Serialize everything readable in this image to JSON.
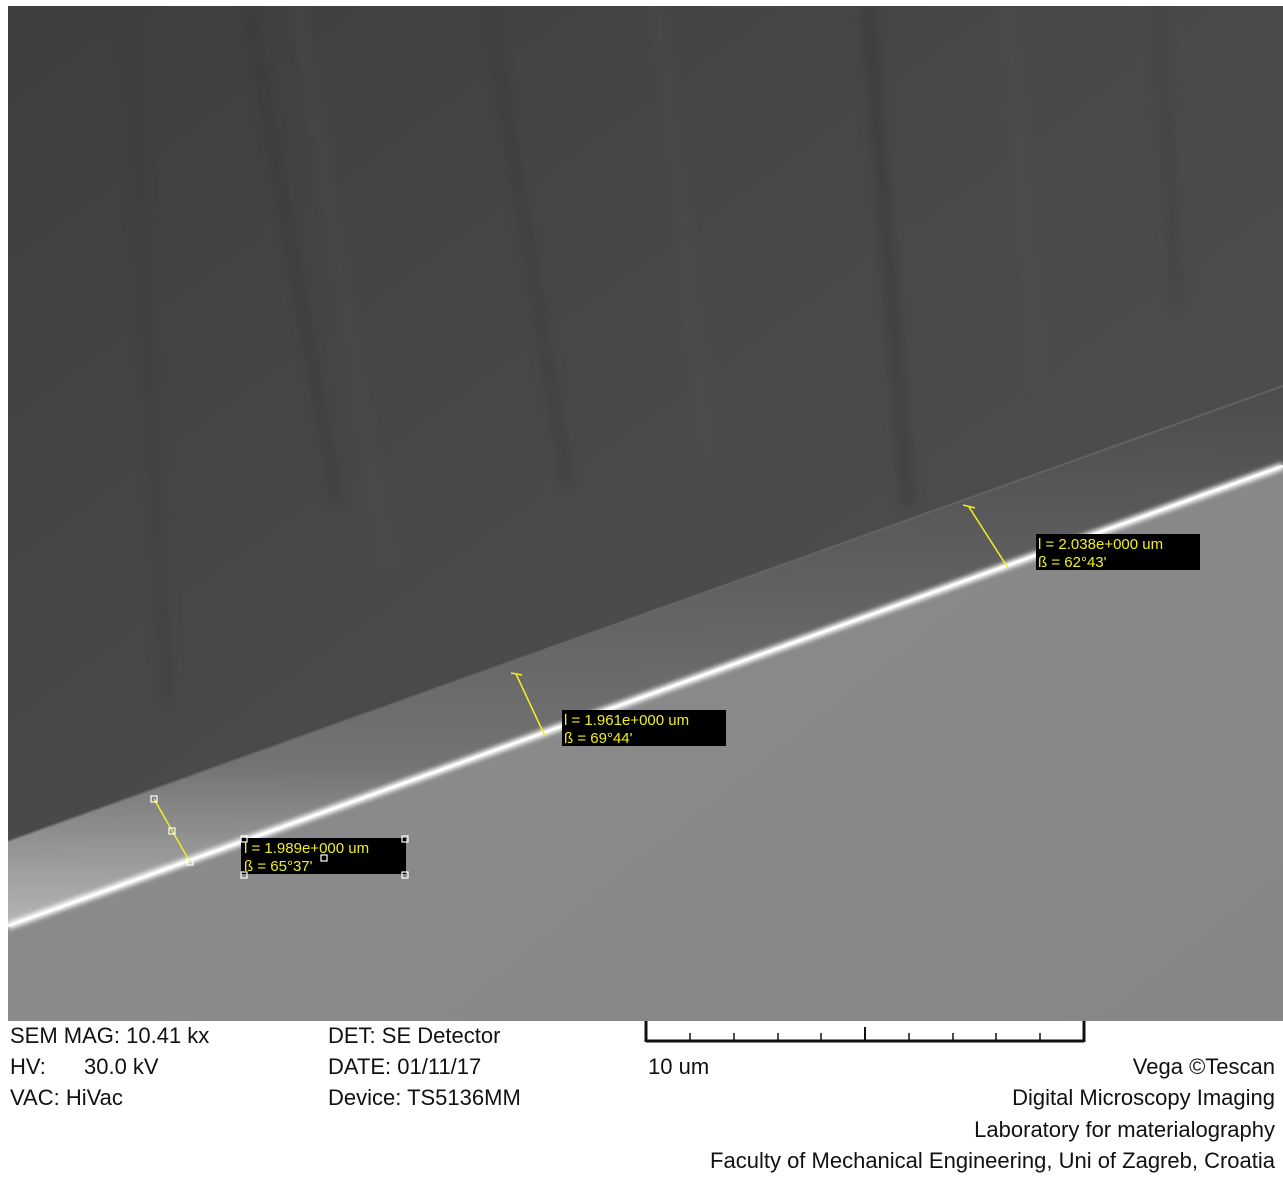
{
  "measurements": [
    {
      "length": "l = 1.989e+000 um",
      "angle": "ß = 65°37'"
    },
    {
      "length": "l = 1.961e+000 um",
      "angle": "ß = 69°44'"
    },
    {
      "length": "l = 2.038e+000 um",
      "angle": "ß = 62°43'"
    }
  ],
  "info": {
    "mag": "SEM MAG: 10.41 kx",
    "hv_label": "HV:",
    "hv_value": "30.0 kV",
    "vac": "VAC: HiVac",
    "det": "DET: SE Detector",
    "date": "DATE: 01/11/17",
    "device": "Device: TS5136MM",
    "scale_label": "10 um",
    "brand": "Vega ©Tescan",
    "imaging": "Digital Microscopy Imaging",
    "lab": "Laboratory for materialography",
    "faculty": "Faculty of Mechanical Engineering, Uni of Zagreb, Croatia"
  },
  "colors": {
    "annotation": "#f0f020",
    "label_background": "#000000",
    "upper_surface": "#4a4a4a",
    "lower_surface": "#8a8a8a"
  }
}
